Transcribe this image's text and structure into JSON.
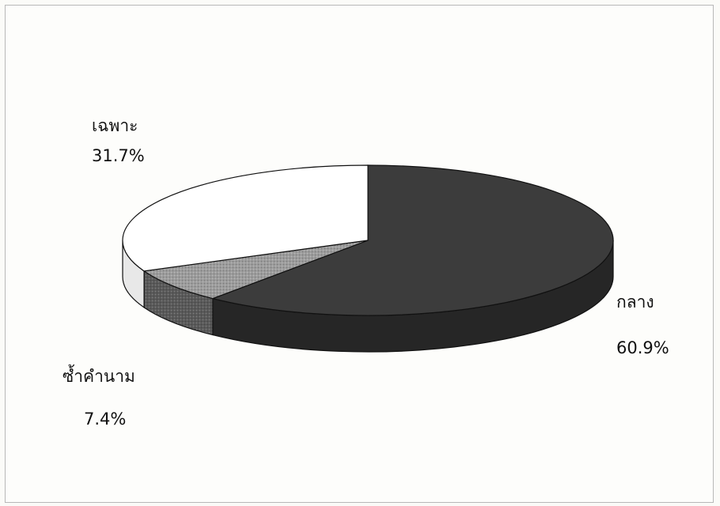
{
  "chart_data": {
    "type": "pie",
    "style": "3d",
    "slices": [
      {
        "label": "กลาง",
        "value": 60.9,
        "display": "60.9%",
        "color": "#3a3a3a"
      },
      {
        "label": "ซ้ำคำนาม",
        "value": 7.4,
        "display": "7.4%",
        "color": "#9a9a9a"
      },
      {
        "label": "เฉพาะ",
        "value": 31.7,
        "display": "31.7%",
        "color": "#ffffff"
      }
    ],
    "title": "",
    "legend": "none"
  }
}
